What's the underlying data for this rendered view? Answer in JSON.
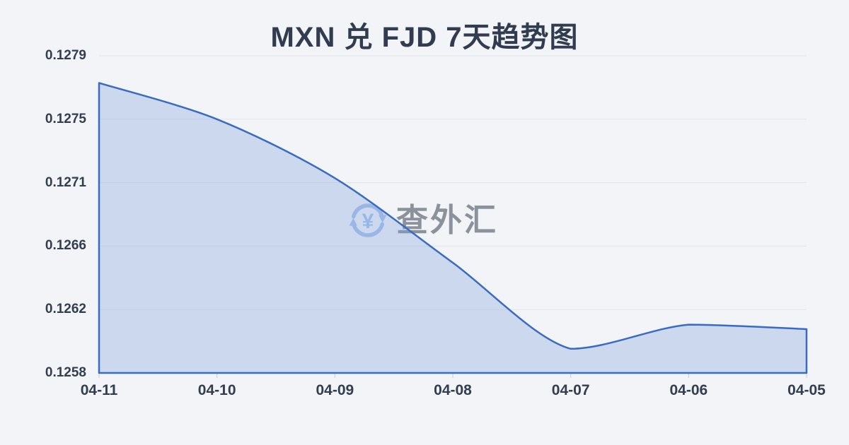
{
  "page": {
    "background": "#f3f4f7"
  },
  "title": {
    "text": "MXN 兑 FJD 7天趋势图",
    "color": "#323c50"
  },
  "watermark": {
    "text": "查外汇",
    "icon": "currency-exchange-refresh-icon"
  },
  "chart_data": {
    "type": "area",
    "title": "MXN 兑 FJD 7天趋势图",
    "categories": [
      "04-11",
      "04-10",
      "04-09",
      "04-08",
      "04-07",
      "04-06",
      "04-05"
    ],
    "values": [
      0.12772,
      0.12748,
      0.12709,
      0.12653,
      0.12596,
      0.12612,
      0.12609
    ],
    "y_tick_labels": [
      "0.1279",
      "0.1275",
      "0.1271",
      "0.1266",
      "0.1262",
      "0.1258"
    ],
    "ylim": [
      0.1258,
      0.1279
    ],
    "xlabel": "",
    "ylabel": "",
    "grid": true,
    "legend": false,
    "colors": {
      "line": "#3a6bc4",
      "area_fill": "rgba(125,160,220,0.33)",
      "gridline": "#e2e4e9",
      "tick": "#c9ccd3",
      "axis_label": "#333d50",
      "title": "#323c50",
      "watermark_text": "#8b929c",
      "watermark_icon": "#a6c2ee"
    }
  }
}
